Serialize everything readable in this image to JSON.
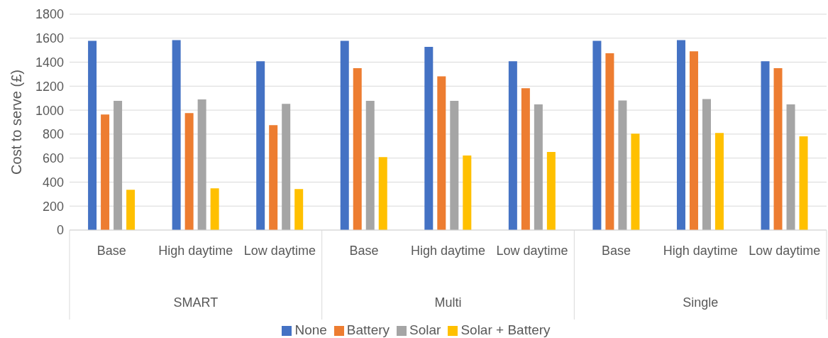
{
  "chart_data": {
    "type": "bar",
    "ylabel": "Cost to serve (£)",
    "categories": [
      "Base",
      "High daytime",
      "Low daytime",
      "Base",
      "High daytime",
      "Low daytime",
      "Base",
      "High daytime",
      "Low daytime"
    ],
    "annotations": [
      "SMART",
      "Multi",
      "Single"
    ],
    "series": [
      {
        "name": "None",
        "color": "#4472c4",
        "values": [
          1578,
          1584,
          1407,
          1578,
          1527,
          1407,
          1578,
          1584,
          1407
        ]
      },
      {
        "name": "Battery",
        "color": "#ed7d31",
        "values": [
          963,
          976,
          875,
          1350,
          1282,
          1182,
          1474,
          1490,
          1350
        ]
      },
      {
        "name": "Solar",
        "color": "#a5a5a5",
        "values": [
          1077,
          1090,
          1052,
          1077,
          1077,
          1048,
          1080,
          1092,
          1048
        ]
      },
      {
        "name": "Solar + Battery",
        "color": "#ffc000",
        "values": [
          336,
          348,
          342,
          608,
          621,
          652,
          804,
          810,
          782
        ]
      }
    ],
    "ylim": [
      0,
      1800
    ],
    "yticks": [
      0,
      200,
      400,
      600,
      800,
      1000,
      1200,
      1400,
      1600,
      1800
    ],
    "grid": "y",
    "legend": "bottom"
  }
}
